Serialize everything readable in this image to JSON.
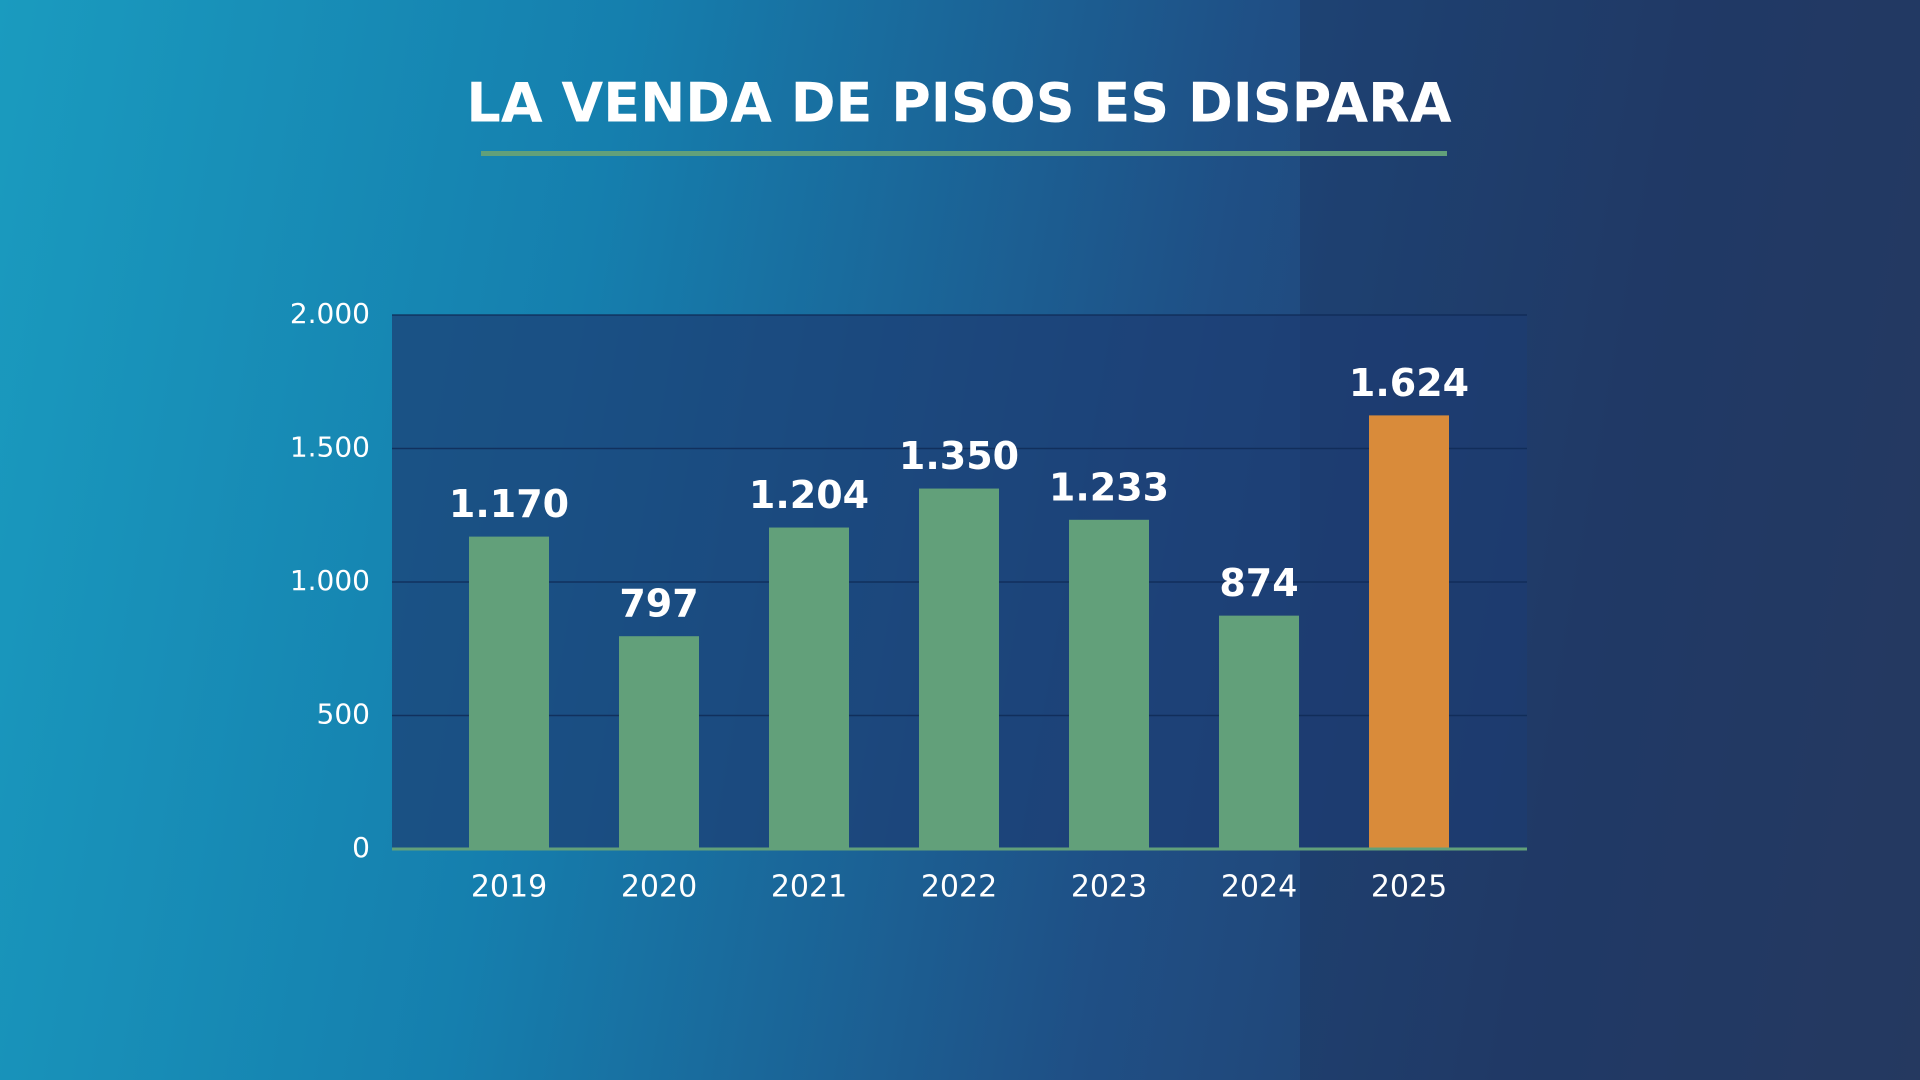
{
  "chart_data": {
    "type": "bar",
    "title": "LA VENDA DE PISOS ES DISPARA",
    "categories": [
      "2019",
      "2020",
      "2021",
      "2022",
      "2023",
      "2024",
      "2025"
    ],
    "values": [
      1170,
      797,
      1204,
      1350,
      1233,
      874,
      1624
    ],
    "value_labels": [
      "1.170",
      "797",
      "1.204",
      "1.350",
      "1.233",
      "874",
      "1.624"
    ],
    "colors": [
      "#62a07a",
      "#62a07a",
      "#62a07a",
      "#62a07a",
      "#62a07a",
      "#62a07a",
      "#d98b3a"
    ],
    "ylim": [
      0,
      2000
    ],
    "yticks": [
      0,
      500,
      {
        "value": 1000,
        "label": "1.000"
      },
      {
        "value": 1500,
        "label": "1.500"
      },
      {
        "value": 2000,
        "label": "2.000"
      }
    ],
    "grid": true
  }
}
